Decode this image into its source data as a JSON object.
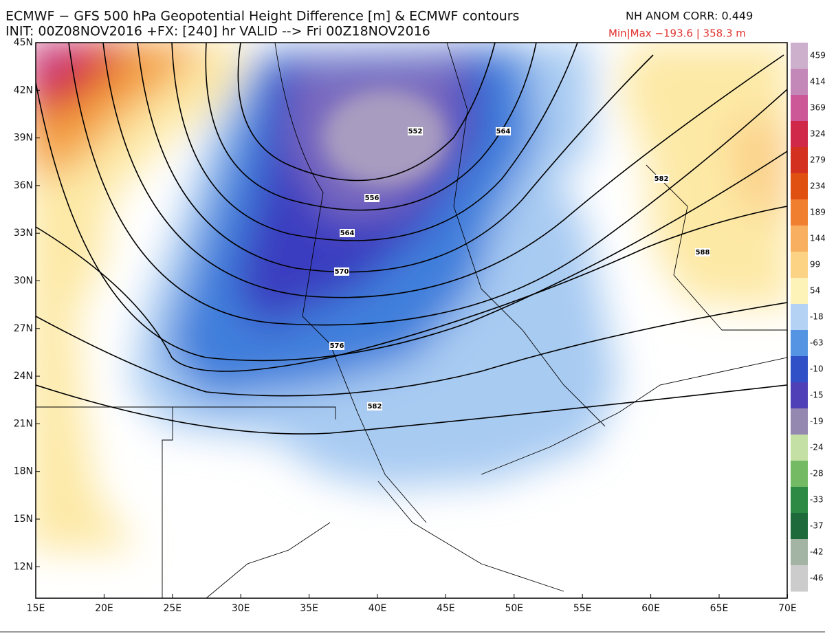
{
  "header": {
    "title": "ECMWF − GFS 500 hPa Geopotential Height Difference [m] & ECMWF contours",
    "init": "INIT: 00Z08NOV2016 +FX: [240] hr VALID --> Fri 00Z18NOV2016",
    "anom_corr": "NH ANOM CORR: 0.449",
    "min_max": "Min|Max −193.6 | 358.3 m"
  },
  "lat_labels": [
    "45N",
    "42N",
    "39N",
    "36N",
    "33N",
    "30N",
    "27N",
    "24N",
    "21N",
    "18N",
    "15N",
    "12N"
  ],
  "lon_labels": [
    "15E",
    "20E",
    "25E",
    "30E",
    "35E",
    "40E",
    "45E",
    "50E",
    "55E",
    "60E",
    "65E",
    "70E"
  ],
  "colorbar_labels": [
    "459",
    "414",
    "369",
    "324",
    "279",
    "234",
    "189",
    "144",
    "99",
    "54",
    "-18",
    "-63",
    "-10",
    "-15",
    "-19",
    "-24",
    "-28",
    "-33",
    "-37",
    "-42",
    "-46"
  ],
  "contour_labels": [
    "552",
    "564",
    "556",
    "564",
    "570",
    "576",
    "582",
    "582",
    "588"
  ]
}
